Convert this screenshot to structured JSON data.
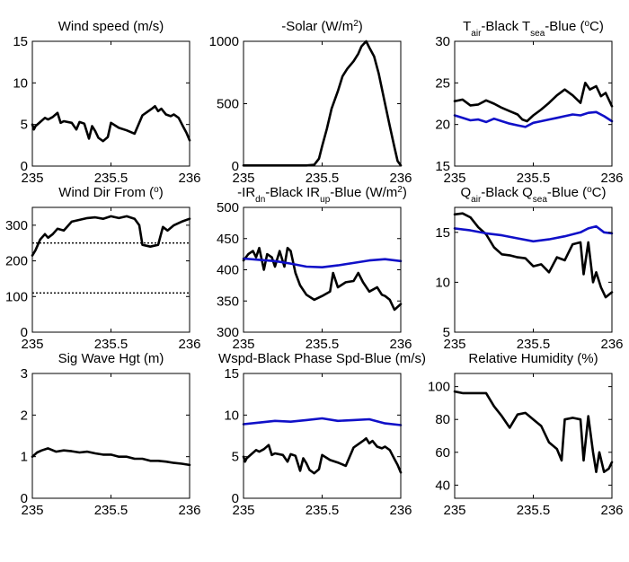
{
  "colors": {
    "black": "#000000",
    "blue": "#1010c8",
    "background": "#ffffff"
  },
  "chart_data": [
    {
      "type": "line",
      "title_parts": [
        {
          "t": "Wind speed (m/s)"
        }
      ],
      "xlim": [
        235,
        236
      ],
      "ylim": [
        0,
        15
      ],
      "x_ticks": [
        235,
        235.5,
        236
      ],
      "x_tick_labels": [
        "235",
        "235.5",
        "236"
      ],
      "y_ticks": [
        0,
        5,
        10,
        15
      ],
      "y_tick_labels": [
        "0",
        "5",
        "10",
        "15"
      ],
      "grid": false,
      "series": [
        {
          "color": "black",
          "x": [
            235.0,
            235.01,
            235.02,
            235.05,
            235.08,
            235.1,
            235.13,
            235.16,
            235.18,
            235.2,
            235.25,
            235.28,
            235.3,
            235.33,
            235.36,
            235.38,
            235.4,
            235.42,
            235.45,
            235.48,
            235.5,
            235.55,
            235.6,
            235.65,
            235.7,
            235.73,
            235.76,
            235.78,
            235.8,
            235.82,
            235.85,
            235.88,
            235.9,
            235.93,
            235.96,
            235.98,
            236.0
          ],
          "y": [
            5.0,
            4.4,
            4.8,
            5.3,
            5.8,
            5.6,
            5.9,
            6.4,
            5.2,
            5.4,
            5.2,
            4.4,
            5.3,
            5.1,
            3.3,
            4.8,
            4.2,
            3.4,
            3.0,
            3.5,
            5.2,
            4.6,
            4.3,
            3.9,
            6.1,
            6.5,
            6.9,
            7.2,
            6.6,
            6.9,
            6.2,
            6.0,
            6.2,
            5.8,
            4.7,
            4.0,
            3.1
          ]
        }
      ]
    },
    {
      "type": "line",
      "title_parts": [
        {
          "t": "-Solar (W/m"
        },
        {
          "t": "2",
          "sup": true
        },
        {
          "t": ")"
        }
      ],
      "xlim": [
        235,
        236
      ],
      "ylim": [
        0,
        1000
      ],
      "x_ticks": [
        235,
        235.5,
        236
      ],
      "x_tick_labels": [
        "235",
        "235.5",
        "236"
      ],
      "y_ticks": [
        0,
        500,
        1000
      ],
      "y_tick_labels": [
        "0",
        "500",
        "1000"
      ],
      "grid": false,
      "series": [
        {
          "color": "black",
          "x": [
            235.0,
            235.2,
            235.4,
            235.45,
            235.48,
            235.5,
            235.53,
            235.56,
            235.6,
            235.63,
            235.66,
            235.7,
            235.73,
            235.75,
            235.78,
            235.8,
            235.83,
            235.86,
            235.9,
            235.93,
            235.96,
            235.98,
            236.0
          ],
          "y": [
            5,
            5,
            5,
            10,
            60,
            160,
            300,
            460,
            600,
            720,
            780,
            840,
            900,
            960,
            1000,
            950,
            880,
            740,
            500,
            320,
            150,
            40,
            5
          ]
        }
      ]
    },
    {
      "type": "line",
      "title_parts": [
        {
          "t": "T"
        },
        {
          "t": "air",
          "sub": true
        },
        {
          "t": "-Black  T"
        },
        {
          "t": "sea",
          "sub": true
        },
        {
          "t": "-Blue ("
        },
        {
          "t": "o",
          "sup": true
        },
        {
          "t": "C)"
        }
      ],
      "xlim": [
        235,
        236
      ],
      "ylim": [
        15,
        30
      ],
      "x_ticks": [
        235,
        235.5,
        236
      ],
      "x_tick_labels": [
        "235",
        "235.5",
        "236"
      ],
      "y_ticks": [
        15,
        20,
        25,
        30
      ],
      "y_tick_labels": [
        "15",
        "20",
        "25",
        "30"
      ],
      "grid": false,
      "series": [
        {
          "color": "black",
          "x": [
            235.0,
            235.05,
            235.1,
            235.15,
            235.2,
            235.25,
            235.3,
            235.35,
            235.4,
            235.43,
            235.46,
            235.5,
            235.55,
            235.6,
            235.65,
            235.7,
            235.75,
            235.8,
            235.83,
            235.86,
            235.9,
            235.93,
            235.96,
            236.0
          ],
          "y": [
            22.8,
            23.0,
            22.3,
            22.4,
            22.9,
            22.5,
            22.0,
            21.6,
            21.2,
            20.6,
            20.4,
            21.1,
            21.8,
            22.6,
            23.5,
            24.2,
            23.5,
            22.6,
            25.0,
            24.2,
            24.6,
            23.4,
            23.8,
            22.2
          ]
        },
        {
          "color": "blue",
          "x": [
            235.0,
            235.05,
            235.1,
            235.15,
            235.2,
            235.25,
            235.3,
            235.35,
            235.4,
            235.45,
            235.5,
            235.55,
            235.6,
            235.65,
            235.7,
            235.75,
            235.8,
            235.85,
            235.9,
            235.95,
            236.0
          ],
          "y": [
            21.1,
            20.8,
            20.5,
            20.6,
            20.3,
            20.7,
            20.4,
            20.1,
            19.9,
            19.7,
            20.2,
            20.4,
            20.6,
            20.8,
            21.0,
            21.2,
            21.1,
            21.4,
            21.5,
            21.0,
            20.4
          ]
        }
      ]
    },
    {
      "type": "line",
      "title_parts": [
        {
          "t": "Wind Dir From ("
        },
        {
          "t": "o",
          "sup": true
        },
        {
          "t": ")"
        }
      ],
      "xlim": [
        235,
        236
      ],
      "ylim": [
        0,
        350
      ],
      "x_ticks": [
        235,
        235.5,
        236
      ],
      "x_tick_labels": [
        "235",
        "235.5",
        "236"
      ],
      "y_ticks": [
        0,
        100,
        200,
        300
      ],
      "y_tick_labels": [
        "0",
        "100",
        "200",
        "300"
      ],
      "grid": false,
      "reference_lines": [
        250,
        110
      ],
      "series": [
        {
          "color": "black",
          "x": [
            235.0,
            235.02,
            235.05,
            235.08,
            235.1,
            235.13,
            235.16,
            235.2,
            235.25,
            235.3,
            235.35,
            235.4,
            235.45,
            235.5,
            235.55,
            235.6,
            235.65,
            235.68,
            235.7,
            235.75,
            235.8,
            235.83,
            235.86,
            235.9,
            235.95,
            236.0
          ],
          "y": [
            215,
            230,
            260,
            275,
            265,
            275,
            290,
            285,
            310,
            315,
            320,
            322,
            318,
            325,
            320,
            325,
            318,
            300,
            245,
            240,
            245,
            295,
            285,
            300,
            310,
            318
          ]
        }
      ]
    },
    {
      "type": "line",
      "title_parts": [
        {
          "t": "-IR"
        },
        {
          "t": "dn",
          "sub": true
        },
        {
          "t": "-Black  IR"
        },
        {
          "t": "up",
          "sub": true
        },
        {
          "t": "-Blue (W/m"
        },
        {
          "t": "2",
          "sup": true
        },
        {
          "t": ")"
        }
      ],
      "xlim": [
        235,
        236
      ],
      "ylim": [
        300,
        500
      ],
      "x_ticks": [
        235,
        235.5,
        236
      ],
      "x_tick_labels": [
        "235",
        "235.5",
        "236"
      ],
      "y_ticks": [
        300,
        350,
        400,
        450,
        500
      ],
      "y_tick_labels": [
        "300",
        "350",
        "400",
        "450",
        "500"
      ],
      "grid": false,
      "series": [
        {
          "color": "black",
          "x": [
            235.0,
            235.03,
            235.06,
            235.08,
            235.1,
            235.13,
            235.15,
            235.18,
            235.2,
            235.23,
            235.26,
            235.28,
            235.3,
            235.33,
            235.36,
            235.4,
            235.45,
            235.5,
            235.55,
            235.57,
            235.6,
            235.65,
            235.7,
            235.73,
            235.76,
            235.8,
            235.85,
            235.88,
            235.9,
            235.93,
            235.96,
            236.0
          ],
          "y": [
            415,
            425,
            430,
            420,
            435,
            400,
            425,
            420,
            405,
            430,
            405,
            435,
            430,
            395,
            375,
            360,
            352,
            358,
            365,
            395,
            372,
            380,
            382,
            395,
            380,
            365,
            372,
            360,
            358,
            352,
            336,
            345
          ]
        },
        {
          "color": "blue",
          "x": [
            235.0,
            235.1,
            235.2,
            235.3,
            235.4,
            235.5,
            235.6,
            235.7,
            235.8,
            235.9,
            236.0
          ],
          "y": [
            418,
            416,
            414,
            410,
            405,
            404,
            407,
            411,
            415,
            417,
            414
          ]
        }
      ]
    },
    {
      "type": "line",
      "title_parts": [
        {
          "t": "Q"
        },
        {
          "t": "air",
          "sub": true
        },
        {
          "t": "-Black  Q"
        },
        {
          "t": "sea",
          "sub": true
        },
        {
          "t": "-Blue ("
        },
        {
          "t": "o",
          "sup": true
        },
        {
          "t": "C)"
        }
      ],
      "xlim": [
        235,
        236
      ],
      "ylim": [
        5,
        17.5
      ],
      "x_ticks": [
        235,
        235.5,
        236
      ],
      "x_tick_labels": [
        "235",
        "235.5",
        "236"
      ],
      "y_ticks": [
        5,
        10,
        15
      ],
      "y_tick_labels": [
        "5",
        "10",
        "15"
      ],
      "grid": false,
      "series": [
        {
          "color": "black",
          "x": [
            235.0,
            235.05,
            235.1,
            235.15,
            235.2,
            235.25,
            235.3,
            235.35,
            235.4,
            235.45,
            235.5,
            235.55,
            235.6,
            235.65,
            235.7,
            235.75,
            235.8,
            235.82,
            235.85,
            235.88,
            235.9,
            235.93,
            235.96,
            236.0
          ],
          "y": [
            16.8,
            16.9,
            16.5,
            15.5,
            14.8,
            13.5,
            12.8,
            12.7,
            12.5,
            12.4,
            11.6,
            11.8,
            11.0,
            12.5,
            12.2,
            13.8,
            14.0,
            10.8,
            14.0,
            10.0,
            11.0,
            9.5,
            8.5,
            9.0
          ]
        },
        {
          "color": "blue",
          "x": [
            235.0,
            235.1,
            235.2,
            235.3,
            235.4,
            235.5,
            235.6,
            235.7,
            235.8,
            235.85,
            235.9,
            235.95,
            236.0
          ],
          "y": [
            15.4,
            15.2,
            14.9,
            14.7,
            14.4,
            14.1,
            14.3,
            14.6,
            15.0,
            15.4,
            15.6,
            15.0,
            14.9
          ]
        }
      ]
    },
    {
      "type": "line",
      "title_parts": [
        {
          "t": "Sig Wave Hgt (m)"
        }
      ],
      "xlim": [
        235,
        236
      ],
      "ylim": [
        0,
        3
      ],
      "x_ticks": [
        235,
        235.5,
        236
      ],
      "x_tick_labels": [
        "235",
        "235.5",
        "236"
      ],
      "y_ticks": [
        0,
        1,
        2,
        3
      ],
      "y_tick_labels": [
        "0",
        "1",
        "2",
        "3"
      ],
      "grid": false,
      "series": [
        {
          "color": "black",
          "x": [
            235.0,
            235.03,
            235.06,
            235.1,
            235.15,
            235.2,
            235.25,
            235.3,
            235.35,
            235.4,
            235.45,
            235.5,
            235.55,
            235.6,
            235.65,
            235.7,
            235.75,
            235.8,
            235.85,
            235.9,
            235.95,
            236.0
          ],
          "y": [
            1.0,
            1.1,
            1.15,
            1.2,
            1.12,
            1.15,
            1.13,
            1.1,
            1.12,
            1.08,
            1.05,
            1.05,
            1.0,
            1.0,
            0.95,
            0.95,
            0.9,
            0.9,
            0.88,
            0.85,
            0.83,
            0.8
          ]
        }
      ]
    },
    {
      "type": "line",
      "title_parts": [
        {
          "t": "Wspd-Black  Phase Spd-Blue (m/s)"
        }
      ],
      "xlim": [
        235,
        236
      ],
      "ylim": [
        0,
        15
      ],
      "x_ticks": [
        235,
        235.5,
        236
      ],
      "x_tick_labels": [
        "235",
        "235.5",
        "236"
      ],
      "y_ticks": [
        0,
        5,
        10,
        15
      ],
      "y_tick_labels": [
        "0",
        "5",
        "10",
        "15"
      ],
      "grid": false,
      "series": [
        {
          "color": "black",
          "x": [
            235.0,
            235.01,
            235.02,
            235.05,
            235.08,
            235.1,
            235.13,
            235.16,
            235.18,
            235.2,
            235.25,
            235.28,
            235.3,
            235.33,
            235.36,
            235.38,
            235.4,
            235.42,
            235.45,
            235.48,
            235.5,
            235.55,
            235.6,
            235.65,
            235.7,
            235.73,
            235.76,
            235.78,
            235.8,
            235.82,
            235.85,
            235.88,
            235.9,
            235.93,
            235.96,
            235.98,
            236.0
          ],
          "y": [
            5.0,
            4.4,
            4.8,
            5.3,
            5.8,
            5.6,
            5.9,
            6.4,
            5.2,
            5.4,
            5.2,
            4.4,
            5.3,
            5.1,
            3.3,
            4.8,
            4.2,
            3.4,
            3.0,
            3.5,
            5.2,
            4.6,
            4.3,
            3.9,
            6.1,
            6.5,
            6.9,
            7.2,
            6.6,
            6.9,
            6.2,
            6.0,
            6.2,
            5.8,
            4.7,
            4.0,
            3.1
          ]
        },
        {
          "color": "blue",
          "x": [
            235.0,
            235.1,
            235.2,
            235.3,
            235.4,
            235.5,
            235.6,
            235.7,
            235.8,
            235.9,
            236.0
          ],
          "y": [
            8.9,
            9.1,
            9.3,
            9.2,
            9.4,
            9.6,
            9.3,
            9.4,
            9.5,
            9.0,
            8.8
          ]
        }
      ]
    },
    {
      "type": "line",
      "title_parts": [
        {
          "t": "Relative Humidity (%)"
        }
      ],
      "xlim": [
        235,
        236
      ],
      "ylim": [
        32,
        108
      ],
      "x_ticks": [
        235,
        235.5,
        236
      ],
      "x_tick_labels": [
        "235",
        "235.5",
        "236"
      ],
      "y_ticks": [
        40,
        60,
        80,
        100
      ],
      "y_tick_labels": [
        "40",
        "60",
        "80",
        "100"
      ],
      "grid": false,
      "series": [
        {
          "color": "black",
          "x": [
            235.0,
            235.05,
            235.1,
            235.15,
            235.2,
            235.25,
            235.3,
            235.35,
            235.4,
            235.45,
            235.5,
            235.55,
            235.6,
            235.65,
            235.68,
            235.7,
            235.75,
            235.8,
            235.82,
            235.85,
            235.88,
            235.9,
            235.92,
            235.95,
            235.98,
            236.0
          ],
          "y": [
            97,
            96,
            96,
            96,
            96,
            88,
            82,
            75,
            83,
            84,
            80,
            76,
            66,
            62,
            55,
            80,
            81,
            80,
            55,
            82,
            60,
            48,
            60,
            48,
            50,
            54
          ]
        }
      ]
    }
  ]
}
